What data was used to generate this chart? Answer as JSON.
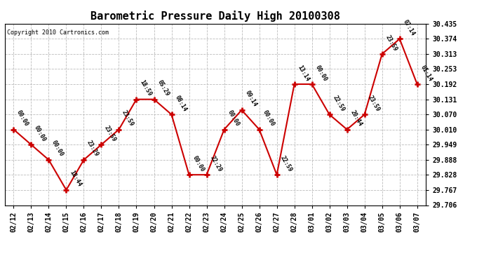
{
  "title": "Barometric Pressure Daily High 20100308",
  "copyright": "Copyright 2010 Cartronics.com",
  "x_labels": [
    "02/12",
    "02/13",
    "02/14",
    "02/15",
    "02/16",
    "02/17",
    "02/18",
    "02/19",
    "02/20",
    "02/21",
    "02/22",
    "02/23",
    "02/24",
    "02/25",
    "02/26",
    "02/27",
    "02/28",
    "03/01",
    "03/02",
    "03/03",
    "03/04",
    "03/05",
    "03/06",
    "03/07"
  ],
  "y_values": [
    30.01,
    29.949,
    29.888,
    29.767,
    29.888,
    29.949,
    30.01,
    30.131,
    30.131,
    30.07,
    29.828,
    29.828,
    30.01,
    30.088,
    30.01,
    29.828,
    30.192,
    30.192,
    30.07,
    30.01,
    30.07,
    30.313,
    30.374,
    30.192
  ],
  "time_labels": [
    "00:00",
    "00:00",
    "00:00",
    "18:44",
    "23:29",
    "23:59",
    "23:59",
    "18:59",
    "05:29",
    "08:14",
    "00:00",
    "22:29",
    "00:00",
    "09:14",
    "00:00",
    "22:59",
    "13:14",
    "00:00",
    "22:59",
    "20:44",
    "23:59",
    "23:59",
    "07:14",
    "01:14"
  ],
  "line_color": "#cc0000",
  "marker_color": "#cc0000",
  "background_color": "#ffffff",
  "grid_color": "#bbbbbb",
  "ylim_min": 29.706,
  "ylim_max": 30.435,
  "ytick_values": [
    29.706,
    29.767,
    29.828,
    29.888,
    29.949,
    30.01,
    30.07,
    30.131,
    30.192,
    30.253,
    30.313,
    30.374,
    30.435
  ],
  "title_fontsize": 11,
  "label_fontsize": 6,
  "tick_fontsize": 7,
  "copyright_fontsize": 6,
  "fig_width": 6.9,
  "fig_height": 3.75,
  "dpi": 100
}
